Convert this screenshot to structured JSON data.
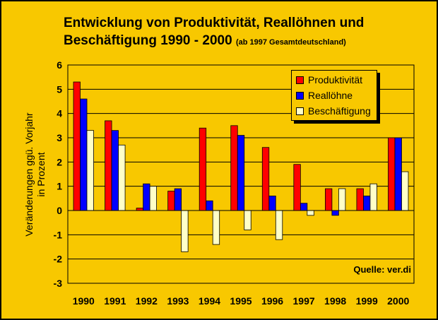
{
  "chart_data": {
    "type": "bar",
    "title": "Entwicklung von Produktivität, Reallöhnen und",
    "title_line2": "Beschäftigung 1990 - 2000",
    "subtitle": "(ab 1997 Gesamtdeutschland)",
    "ylabel_line1": "Veränderungen ggü. Vorjahr",
    "ylabel_line2": "in Prozent",
    "xlabel": "",
    "ylim": [
      -3,
      6
    ],
    "yticks": [
      6,
      5,
      4,
      3,
      2,
      1,
      0,
      -1,
      -2,
      -3
    ],
    "categories": [
      "1990",
      "1991",
      "1992",
      "1993",
      "1994",
      "1995",
      "1996",
      "1997",
      "1998",
      "1999",
      "2000"
    ],
    "series": [
      {
        "name": "Produktivität",
        "color": "#FF0000",
        "values": [
          5.3,
          3.7,
          0.1,
          0.8,
          3.4,
          3.5,
          2.6,
          1.9,
          0.9,
          0.9,
          3.0
        ]
      },
      {
        "name": "Reallöhne",
        "color": "#0000FF",
        "values": [
          4.6,
          3.3,
          1.1,
          0.9,
          0.4,
          3.1,
          0.6,
          0.3,
          -0.2,
          0.6,
          3.0
        ]
      },
      {
        "name": "Beschäftigung",
        "color": "#FFFFC8",
        "values": [
          3.3,
          2.7,
          1.0,
          -1.7,
          -1.4,
          -0.8,
          -1.2,
          -0.2,
          0.9,
          1.1,
          1.6
        ]
      }
    ],
    "grid": true,
    "legend_position": "top-right",
    "annotation": "Quelle: ver.di"
  }
}
